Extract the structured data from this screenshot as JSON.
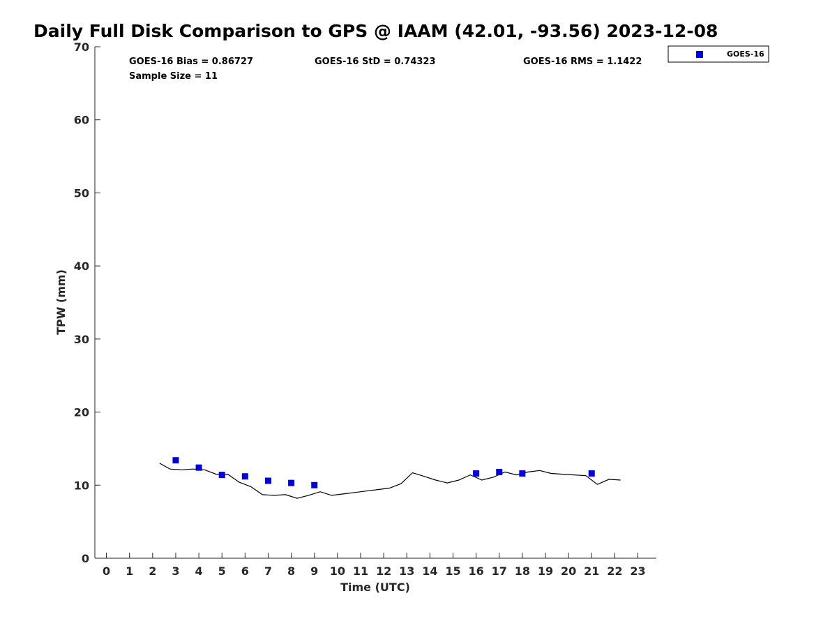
{
  "chart_data": {
    "type": "scatter",
    "title": "Daily Full Disk Comparison to GPS @ IAAM (42.01, -93.56) 2023-12-08",
    "xlabel": "Time (UTC)",
    "ylabel": "TPW (mm)",
    "xlim": [
      -0.5,
      23.8
    ],
    "ylim": [
      0,
      70
    ],
    "xticks": [
      0,
      1,
      2,
      3,
      4,
      5,
      6,
      7,
      8,
      9,
      10,
      11,
      12,
      13,
      14,
      15,
      16,
      17,
      18,
      19,
      20,
      21,
      22,
      23
    ],
    "yticks": [
      0,
      10,
      20,
      30,
      40,
      50,
      60,
      70
    ],
    "grid": false,
    "legend_position": "top-right",
    "stats": {
      "bias": "GOES-16 Bias = 0.86727",
      "std": "GOES-16 StD = 0.74323",
      "rms": "GOES-16 RMS = 1.1422",
      "sample": "Sample Size = 11"
    },
    "series": [
      {
        "name": "GOES-16",
        "kind": "scatter",
        "color": "#0000dd",
        "marker": "square",
        "points": [
          [
            3,
            13.4
          ],
          [
            4,
            12.4
          ],
          [
            5,
            11.4
          ],
          [
            6,
            11.2
          ],
          [
            7,
            10.6
          ],
          [
            8,
            10.3
          ],
          [
            9,
            10.0
          ],
          [
            16,
            11.6
          ],
          [
            17,
            11.8
          ],
          [
            18,
            11.6
          ],
          [
            21,
            11.6
          ]
        ]
      },
      {
        "kind": "line",
        "color": "#000000",
        "points": [
          [
            2.3,
            13.0
          ],
          [
            2.75,
            12.2
          ],
          [
            3.25,
            12.1
          ],
          [
            3.75,
            12.2
          ],
          [
            4.25,
            12.1
          ],
          [
            4.75,
            11.5
          ],
          [
            5.25,
            11.5
          ],
          [
            5.75,
            10.4
          ],
          [
            6.25,
            9.8
          ],
          [
            6.75,
            8.7
          ],
          [
            7.25,
            8.6
          ],
          [
            7.75,
            8.7
          ],
          [
            8.25,
            8.2
          ],
          [
            8.75,
            8.6
          ],
          [
            9.25,
            9.1
          ],
          [
            9.75,
            8.6
          ],
          [
            10.25,
            8.8
          ],
          [
            10.75,
            9.0
          ],
          [
            11.25,
            9.2
          ],
          [
            11.75,
            9.4
          ],
          [
            12.25,
            9.6
          ],
          [
            12.75,
            10.2
          ],
          [
            13.25,
            11.7
          ],
          [
            13.75,
            11.2
          ],
          [
            14.25,
            10.7
          ],
          [
            14.75,
            10.3
          ],
          [
            15.25,
            10.7
          ],
          [
            15.75,
            11.4
          ],
          [
            16.25,
            10.7
          ],
          [
            16.75,
            11.1
          ],
          [
            17.25,
            11.8
          ],
          [
            17.75,
            11.4
          ],
          [
            18.25,
            11.8
          ],
          [
            18.75,
            12.0
          ],
          [
            19.25,
            11.6
          ],
          [
            19.75,
            11.5
          ],
          [
            20.25,
            11.4
          ],
          [
            20.75,
            11.3
          ],
          [
            21.25,
            10.1
          ],
          [
            21.75,
            10.8
          ],
          [
            22.25,
            10.7
          ]
        ]
      }
    ]
  }
}
